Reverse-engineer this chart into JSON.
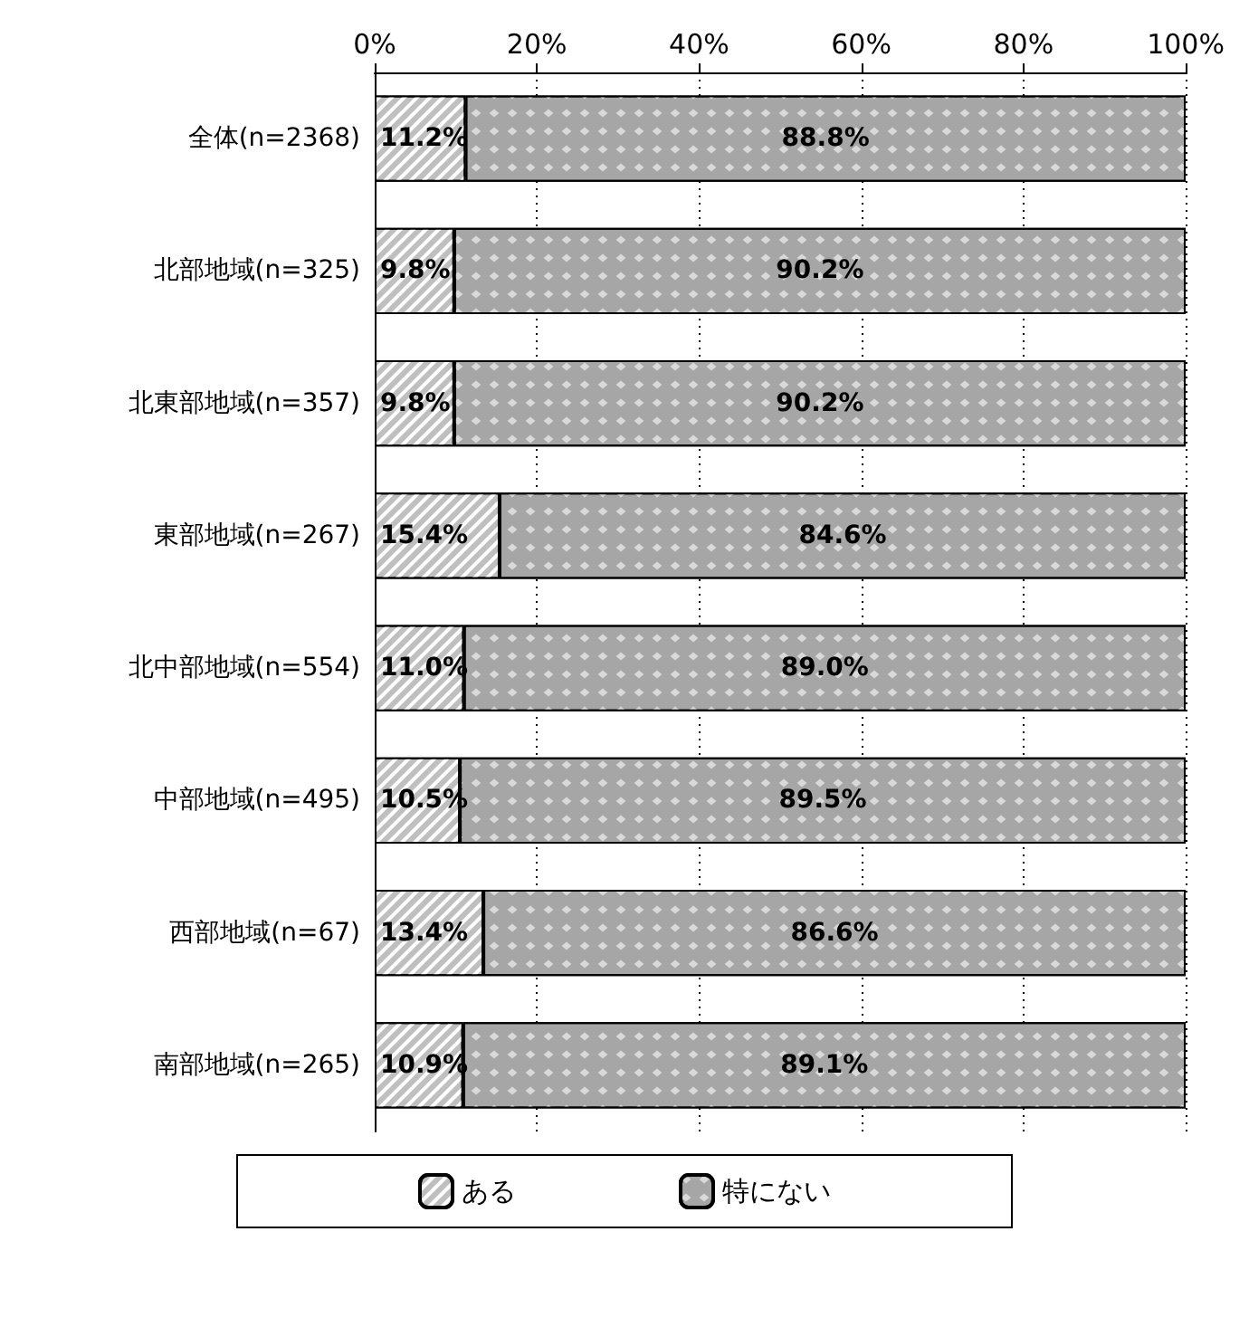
{
  "chart_data": {
    "type": "bar",
    "orientation": "horizontal",
    "stacked": true,
    "categories": [
      "全体(n=2368)",
      "北部地域(n=325)",
      "北東部地域(n=357)",
      "東部地域(n=267)",
      "北中部地域(n=554)",
      "中部地域(n=495)",
      "西部地域(n=67)",
      "南部地域(n=265)"
    ],
    "series": [
      {
        "name": "ある",
        "color": "#bfbfbf",
        "values": [
          11.2,
          9.8,
          9.8,
          15.4,
          11.0,
          10.5,
          13.4,
          10.9
        ],
        "value_labels": [
          "11.2%",
          "9.8%",
          "9.8%",
          "15.4%",
          "11.0%",
          "10.5%",
          "13.4%",
          "10.9%"
        ]
      },
      {
        "name": "特にない",
        "color": "#a6a6a6",
        "values": [
          88.8,
          90.2,
          90.2,
          84.6,
          89.0,
          89.5,
          86.6,
          89.1
        ],
        "value_labels": [
          "88.8%",
          "90.2%",
          "90.2%",
          "84.6%",
          "89.0%",
          "89.5%",
          "86.6%",
          "89.1%"
        ]
      }
    ],
    "xlim": [
      0,
      100
    ],
    "xticks": [
      {
        "value": 0,
        "label": "0%"
      },
      {
        "value": 20,
        "label": "20%"
      },
      {
        "value": 40,
        "label": "40%"
      },
      {
        "value": 60,
        "label": "60%"
      },
      {
        "value": 80,
        "label": "80%"
      },
      {
        "value": 100,
        "label": "100%"
      }
    ],
    "grid": "x",
    "legend": "bottom"
  }
}
